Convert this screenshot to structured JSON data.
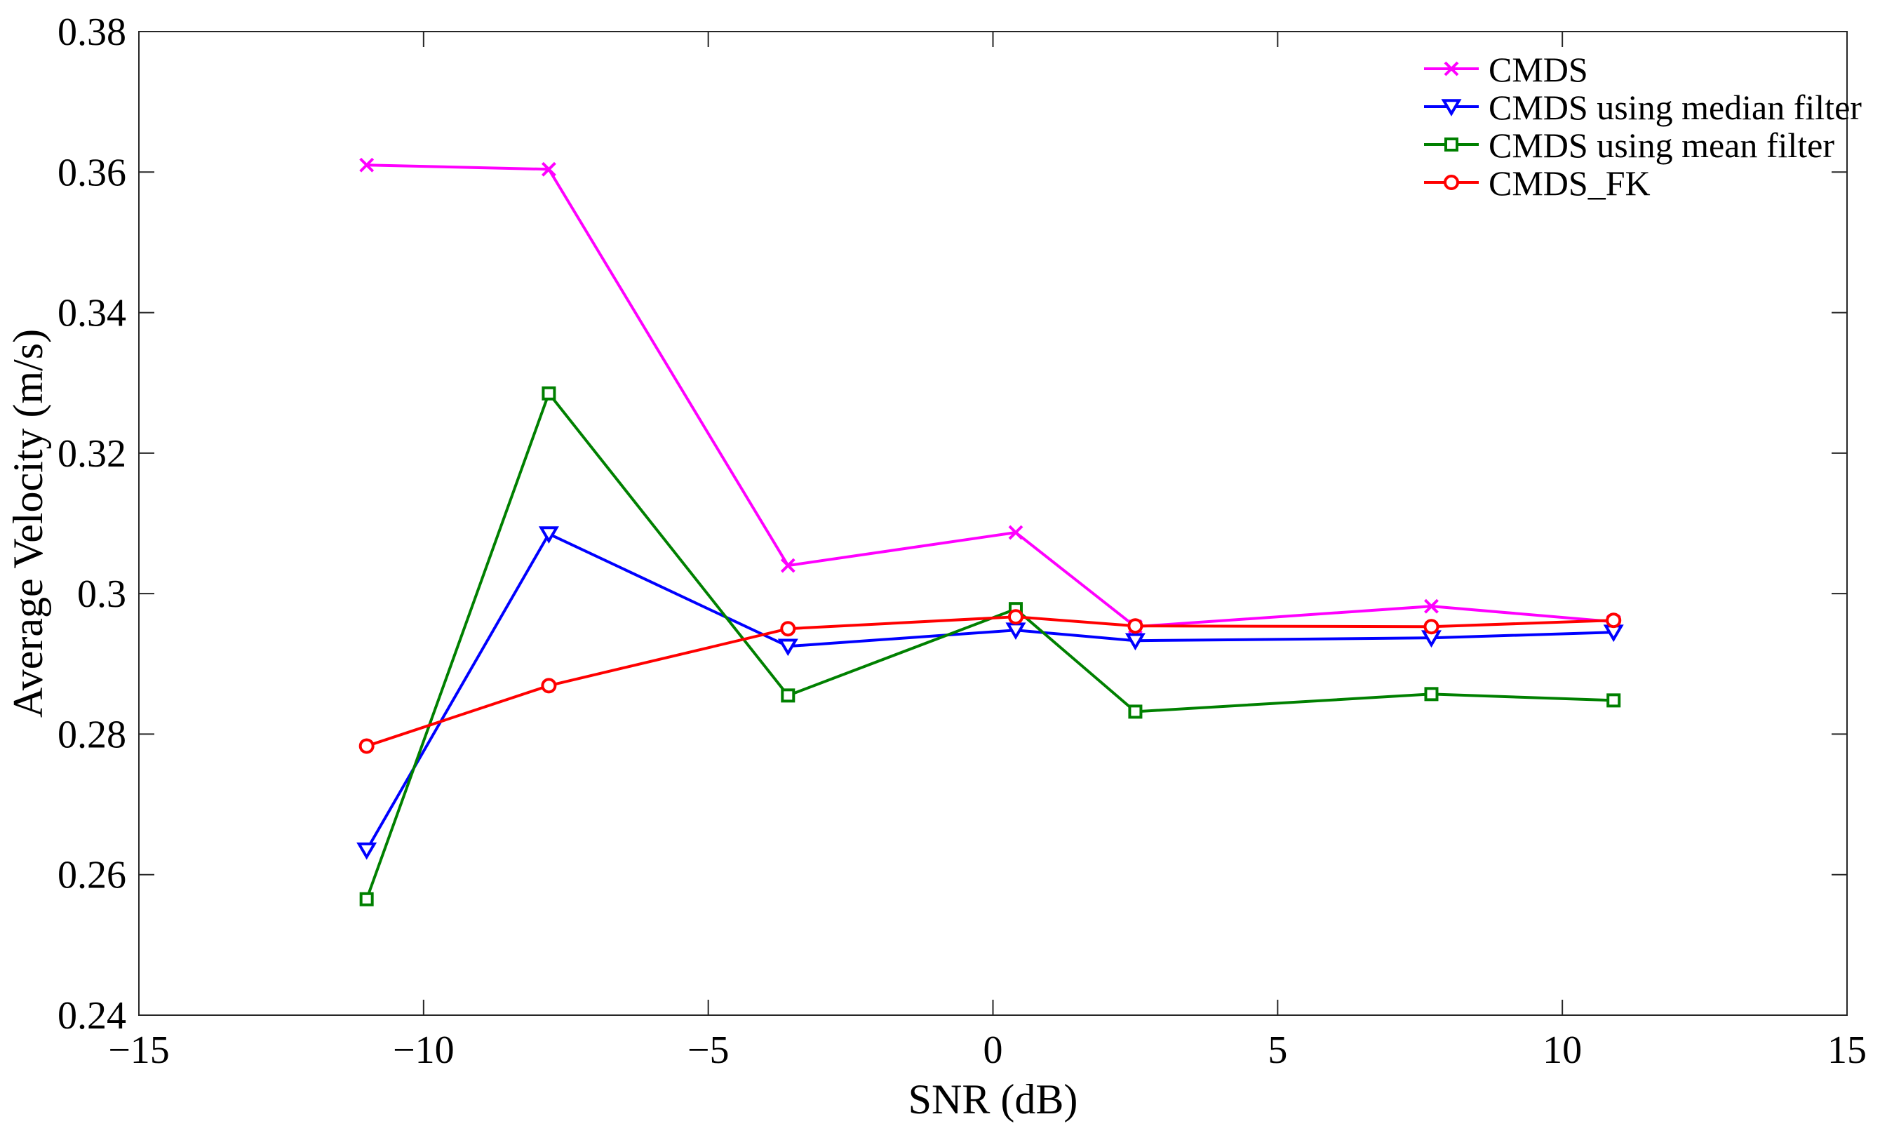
{
  "chart_data": {
    "type": "line",
    "title": "",
    "xlabel": "SNR (dB)",
    "ylabel": "Average Velocity (m/s)",
    "xlim": [
      -15,
      15
    ],
    "ylim": [
      0.24,
      0.38
    ],
    "grid": false,
    "legend_position": "top-right",
    "xticks": [
      -15,
      -10,
      -5,
      0,
      5,
      10,
      15
    ],
    "xtick_labels": [
      "−15",
      "−10",
      "−5",
      "0",
      "5",
      "10",
      "15"
    ],
    "yticks": [
      0.24,
      0.26,
      0.28,
      0.3,
      0.32,
      0.34,
      0.36,
      0.38
    ],
    "ytick_labels": [
      "0.24",
      "0.26",
      "0.28",
      "0.3",
      "0.32",
      "0.34",
      "0.36",
      "0.38"
    ],
    "x": [
      -11,
      -7.8,
      -3.6,
      0.4,
      2.5,
      7.7,
      10.9
    ],
    "series": [
      {
        "name": "CMDS",
        "color": "#ff00ff",
        "marker": "x",
        "values": [
          0.361,
          0.3604,
          0.304,
          0.3087,
          0.2953,
          0.2982,
          0.296
        ]
      },
      {
        "name": "CMDS using median filter",
        "color": "#0000ff",
        "marker": "triangle-down",
        "values": [
          0.2635,
          0.3085,
          0.2925,
          0.2948,
          0.2933,
          0.2937,
          0.2945
        ]
      },
      {
        "name": "CMDS using mean filter",
        "color": "#008000",
        "marker": "square",
        "values": [
          0.2565,
          0.3285,
          0.2855,
          0.2978,
          0.2832,
          0.2857,
          0.2848
        ]
      },
      {
        "name": "CMDS_FK",
        "color": "#ff0000",
        "marker": "circle",
        "values": [
          0.2783,
          0.2869,
          0.295,
          0.2967,
          0.2954,
          0.2953,
          0.2962
        ]
      }
    ]
  }
}
